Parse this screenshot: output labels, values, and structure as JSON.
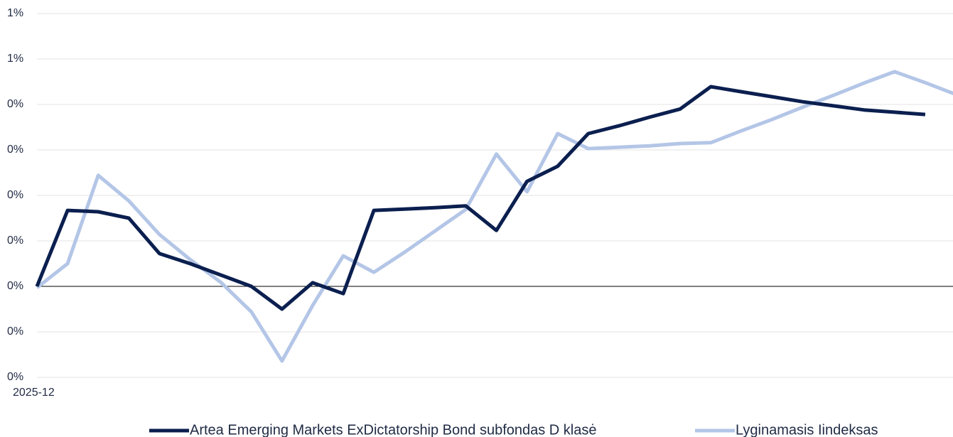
{
  "chart_data": {
    "type": "line",
    "categories": [
      "2025-12",
      null,
      null,
      null,
      null,
      null,
      null,
      null,
      null,
      null,
      null,
      null,
      null,
      null,
      null,
      null,
      null,
      null,
      null,
      null,
      null,
      null,
      null,
      null,
      null,
      null,
      null,
      null,
      null,
      null,
      null
    ],
    "series": [
      {
        "name": "Artea Emerging Markets ExDictatorship Bond subfondas D klasė",
        "color": "#0b1f4f",
        "values": [
          0,
          0.167,
          0.164,
          0.15,
          0.072,
          0.05,
          0.025,
          0,
          -0.05,
          0.008,
          -0.016,
          0.167,
          0.17,
          0.173,
          0.177,
          0.123,
          0.231,
          0.264,
          0.336,
          0.353,
          0.372,
          0.39,
          0.439,
          0.428,
          0.417,
          0.406,
          0.397,
          0.388,
          0.383,
          0.378,
          null
        ]
      },
      {
        "name": "Lyginamasis Iindeksas",
        "color": "#b4c6e7",
        "values": [
          -0.003,
          0.05,
          0.244,
          0.188,
          0.114,
          0.059,
          0.009,
          -0.056,
          -0.164,
          -0.042,
          0.067,
          0.031,
          0.075,
          0.122,
          0.169,
          0.291,
          0.208,
          0.336,
          0.303,
          0.306,
          0.309,
          0.314,
          0.316,
          0.342,
          0.367,
          0.394,
          0.42,
          0.447,
          0.472,
          0.448,
          0.422
        ]
      }
    ],
    "ylim": [
      -0.2,
      0.6
    ],
    "yticks": [
      {
        "value": -0.2,
        "label": "0%"
      },
      {
        "value": -0.1,
        "label": "0%"
      },
      {
        "value": 0,
        "label": "0%"
      },
      {
        "value": 0.1,
        "label": "0%"
      },
      {
        "value": 0.2,
        "label": "0%"
      },
      {
        "value": 0.3,
        "label": "0%"
      },
      {
        "value": 0.4,
        "label": "0%"
      },
      {
        "value": 0.5,
        "label": "1%"
      },
      {
        "value": 0.6,
        "label": "1%"
      }
    ],
    "grid": true,
    "legend": "bottom"
  }
}
